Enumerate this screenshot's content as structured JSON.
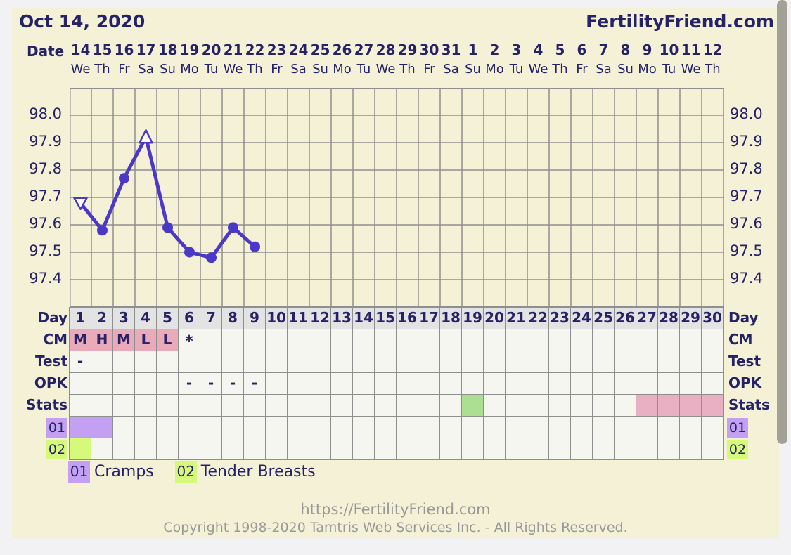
{
  "header": {
    "date_title": "Oct 14, 2020",
    "brand": "FertilityFriend.com",
    "date_axis_label": "Date"
  },
  "calendar": {
    "dates": [
      "14",
      "15",
      "16",
      "17",
      "18",
      "19",
      "20",
      "21",
      "22",
      "23",
      "24",
      "25",
      "26",
      "27",
      "28",
      "29",
      "30",
      "31",
      "1",
      "2",
      "3",
      "4",
      "5",
      "6",
      "7",
      "8",
      "9",
      "10",
      "11",
      "12"
    ],
    "weekdays": [
      "We",
      "Th",
      "Fr",
      "Sa",
      "Su",
      "Mo",
      "Tu",
      "We",
      "Th",
      "Fr",
      "Sa",
      "Su",
      "Mo",
      "Tu",
      "We",
      "Th",
      "Fr",
      "Sa",
      "Su",
      "Mo",
      "Tu",
      "We",
      "Th",
      "Fr",
      "Sa",
      "Su",
      "Mo",
      "Tu",
      "We",
      "Th"
    ]
  },
  "chart_data": {
    "type": "line",
    "title": "Basal body temperature curve, cycle starting Oct 14, 2020",
    "x_unit": "cycle day",
    "x": [
      1,
      2,
      3,
      4,
      5,
      6,
      7,
      8,
      9
    ],
    "values": [
      97.68,
      97.58,
      97.77,
      97.92,
      97.59,
      97.5,
      97.48,
      97.59,
      97.52
    ],
    "markers": [
      "triangle-down",
      "circle",
      "circle",
      "triangle-up",
      "circle",
      "circle",
      "circle",
      "circle",
      "circle"
    ],
    "x_days_total": 30,
    "ylim": [
      97.3,
      98.1
    ],
    "ytick_step": 0.1,
    "ytick_labels": [
      "98.0",
      "97.9",
      "97.8",
      "97.7",
      "97.6",
      "97.5",
      "97.4"
    ],
    "grid": true,
    "line_color": "#4b38c8"
  },
  "table": {
    "row_labels": {
      "day": "Day",
      "cm": "CM",
      "test": "Test",
      "opk": "OPK",
      "stats": "Stats",
      "sym1": "01",
      "sym2": "02"
    },
    "day_numbers": [
      "1",
      "2",
      "3",
      "4",
      "5",
      "6",
      "7",
      "8",
      "9",
      "10",
      "11",
      "12",
      "13",
      "14",
      "15",
      "16",
      "17",
      "18",
      "19",
      "20",
      "21",
      "22",
      "23",
      "24",
      "25",
      "26",
      "27",
      "28",
      "29",
      "30"
    ],
    "cm_cells": [
      {
        "day": 1,
        "text": "M"
      },
      {
        "day": 2,
        "text": "H"
      },
      {
        "day": 3,
        "text": "M"
      },
      {
        "day": 4,
        "text": "L"
      },
      {
        "day": 5,
        "text": "L"
      },
      {
        "day": 6,
        "text": "*"
      }
    ],
    "cm_highlight_days": [
      1,
      2,
      3,
      4,
      5
    ],
    "test_cells": [
      {
        "day": 1,
        "text": "-"
      }
    ],
    "opk_cells": [
      {
        "day": 6,
        "text": "-"
      },
      {
        "day": 7,
        "text": "-"
      },
      {
        "day": 8,
        "text": "-"
      },
      {
        "day": 9,
        "text": "-"
      }
    ],
    "stats_green_days": [
      19
    ],
    "stats_pink_days": [
      27,
      28,
      29,
      30
    ],
    "sym1_days": [
      1,
      2
    ],
    "sym2_days": [
      1
    ]
  },
  "legend": [
    {
      "code": "01",
      "label": "Cramps",
      "color": "#c3a0f2"
    },
    {
      "code": "02",
      "label": "Tender Breasts",
      "color": "#d6f87b"
    }
  ],
  "footer": {
    "url": "https://FertilityFriend.com",
    "copyright": "Copyright 1998-2020 Tamtris Web Services Inc. - All Rights Reserved."
  },
  "colors": {
    "navy": "#262268",
    "bg_content": "#f5f1d7",
    "line": "#4b38c8",
    "cm_pink": "#e9aaba",
    "stats_green": "#addf93",
    "stats_pink": "#e8b0c2",
    "sym1": "#c3a0f2",
    "sym2": "#d6f87b",
    "day_hdr": "#e3e3e3",
    "grid_gray": "#8f8f8f",
    "footer_gray": "#999999",
    "scrollbar": "#a3a196"
  }
}
